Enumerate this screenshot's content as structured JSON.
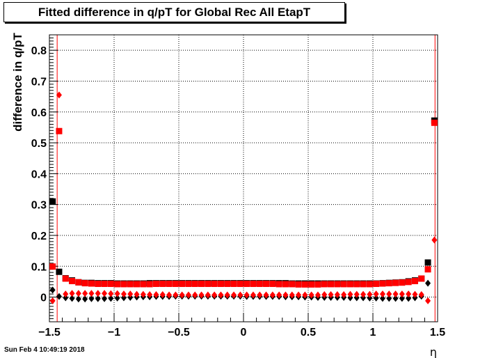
{
  "title": "Fitted difference in q/pT for Global Rec All EtapT",
  "footer_timestamp": "Sun Feb  4 10:49:19 2018",
  "chart_data": {
    "type": "scatter",
    "title": "Fitted difference in q/pT for Global Rec All EtapT",
    "xlabel": "η",
    "ylabel": "difference in q/pT",
    "xlim": [
      -1.5,
      1.5
    ],
    "ylim": [
      -0.08,
      0.85
    ],
    "xticks": [
      -1.5,
      -1,
      -0.5,
      0,
      0.5,
      1,
      1.5
    ],
    "xtick_labels": [
      "−1.5",
      "−1",
      "−0.5",
      "0",
      "0.5",
      "1",
      "1.5"
    ],
    "yticks": [
      0,
      0.1,
      0.2,
      0.3,
      0.4,
      0.5,
      0.6,
      0.7,
      0.8
    ],
    "ytick_labels": [
      "0",
      "0.1",
      "0.2",
      "0.3",
      "0.4",
      "0.5",
      "0.6",
      "0.7",
      "0.8"
    ],
    "grid": true,
    "vertical_lines": [
      -1.44,
      1.48
    ],
    "series": [
      {
        "marker": "square",
        "color": "#000000",
        "x": [
          -1.475,
          -1.425,
          -1.375,
          -1.325,
          -1.275,
          -1.225,
          -1.175,
          -1.125,
          -1.075,
          -1.025,
          -0.975,
          -0.925,
          -0.875,
          -0.825,
          -0.775,
          -0.725,
          -0.675,
          -0.625,
          -0.575,
          -0.525,
          -0.475,
          -0.425,
          -0.375,
          -0.325,
          -0.275,
          -0.225,
          -0.175,
          -0.125,
          -0.075,
          -0.025,
          0.025,
          0.075,
          0.125,
          0.175,
          0.225,
          0.275,
          0.325,
          0.375,
          0.425,
          0.475,
          0.525,
          0.575,
          0.625,
          0.675,
          0.725,
          0.775,
          0.825,
          0.875,
          0.925,
          0.975,
          1.025,
          1.075,
          1.125,
          1.175,
          1.225,
          1.275,
          1.325,
          1.375,
          1.425,
          1.475
        ],
        "y": [
          0.31,
          0.082,
          0.061,
          0.054,
          0.048,
          0.046,
          0.046,
          0.045,
          0.045,
          0.045,
          0.044,
          0.044,
          0.044,
          0.044,
          0.044,
          0.045,
          0.045,
          0.045,
          0.045,
          0.045,
          0.045,
          0.045,
          0.045,
          0.045,
          0.045,
          0.045,
          0.045,
          0.045,
          0.045,
          0.045,
          0.045,
          0.045,
          0.045,
          0.045,
          0.045,
          0.045,
          0.045,
          0.044,
          0.044,
          0.044,
          0.044,
          0.044,
          0.044,
          0.044,
          0.044,
          0.044,
          0.044,
          0.044,
          0.044,
          0.044,
          0.044,
          0.045,
          0.046,
          0.047,
          0.048,
          0.051,
          0.054,
          0.06,
          0.112,
          0.572
        ]
      },
      {
        "marker": "diamond",
        "color": "#000000",
        "x": [
          -1.475,
          -1.425,
          -1.375,
          -1.325,
          -1.275,
          -1.225,
          -1.175,
          -1.125,
          -1.075,
          -1.025,
          -0.975,
          -0.925,
          -0.875,
          -0.825,
          -0.775,
          -0.725,
          -0.675,
          -0.625,
          -0.575,
          -0.525,
          -0.475,
          -0.425,
          -0.375,
          -0.325,
          -0.275,
          -0.225,
          -0.175,
          -0.125,
          -0.075,
          -0.025,
          0.025,
          0.075,
          0.125,
          0.175,
          0.225,
          0.275,
          0.325,
          0.375,
          0.425,
          0.475,
          0.525,
          0.575,
          0.625,
          0.675,
          0.725,
          0.775,
          0.825,
          0.875,
          0.925,
          0.975,
          1.025,
          1.075,
          1.125,
          1.175,
          1.225,
          1.275,
          1.325,
          1.375,
          1.425,
          1.475
        ],
        "y": [
          0.023,
          0.002,
          -0.002,
          -0.004,
          -0.006,
          -0.006,
          -0.005,
          -0.005,
          -0.005,
          -0.004,
          -0.003,
          -0.002,
          -0.001,
          0,
          0.001,
          0.001,
          0.002,
          0.002,
          0.002,
          0.003,
          0.003,
          0.003,
          0.003,
          0.003,
          0.003,
          0.003,
          0.003,
          0.003,
          0.003,
          0.003,
          0.002,
          0.002,
          0.002,
          0.002,
          0.002,
          0.002,
          0.001,
          0.001,
          0.001,
          0,
          0,
          -0.001,
          -0.001,
          -0.001,
          -0.001,
          -0.001,
          -0.002,
          -0.002,
          -0.002,
          -0.003,
          -0.003,
          -0.004,
          -0.004,
          -0.004,
          -0.004,
          -0.004,
          -0.002,
          0.003,
          0.045,
          0.57
        ]
      },
      {
        "marker": "square",
        "color": "#ff0000",
        "x": [
          -1.475,
          -1.425,
          -1.375,
          -1.325,
          -1.275,
          -1.225,
          -1.175,
          -1.125,
          -1.075,
          -1.025,
          -0.975,
          -0.925,
          -0.875,
          -0.825,
          -0.775,
          -0.725,
          -0.675,
          -0.625,
          -0.575,
          -0.525,
          -0.475,
          -0.425,
          -0.375,
          -0.325,
          -0.275,
          -0.225,
          -0.175,
          -0.125,
          -0.075,
          -0.025,
          0.025,
          0.075,
          0.125,
          0.175,
          0.225,
          0.275,
          0.325,
          0.375,
          0.425,
          0.475,
          0.525,
          0.575,
          0.625,
          0.675,
          0.725,
          0.775,
          0.825,
          0.875,
          0.925,
          0.975,
          1.025,
          1.075,
          1.125,
          1.175,
          1.225,
          1.275,
          1.325,
          1.375,
          1.425,
          1.475
        ],
        "y": [
          0.099,
          0.538,
          0.06,
          0.052,
          0.048,
          0.045,
          0.044,
          0.043,
          0.043,
          0.043,
          0.042,
          0.042,
          0.042,
          0.042,
          0.042,
          0.042,
          0.043,
          0.043,
          0.043,
          0.043,
          0.043,
          0.043,
          0.043,
          0.043,
          0.043,
          0.043,
          0.043,
          0.043,
          0.043,
          0.043,
          0.043,
          0.043,
          0.043,
          0.043,
          0.043,
          0.042,
          0.042,
          0.042,
          0.041,
          0.041,
          0.041,
          0.041,
          0.042,
          0.042,
          0.042,
          0.042,
          0.042,
          0.042,
          0.042,
          0.042,
          0.043,
          0.044,
          0.045,
          0.046,
          0.047,
          0.049,
          0.052,
          0.06,
          0.09,
          0.565
        ]
      },
      {
        "marker": "diamond",
        "color": "#ff0000",
        "x": [
          -1.475,
          -1.425,
          -1.375,
          -1.325,
          -1.275,
          -1.225,
          -1.175,
          -1.125,
          -1.075,
          -1.025,
          -0.975,
          -0.925,
          -0.875,
          -0.825,
          -0.775,
          -0.725,
          -0.675,
          -0.625,
          -0.575,
          -0.525,
          -0.475,
          -0.425,
          -0.375,
          -0.325,
          -0.275,
          -0.225,
          -0.175,
          -0.125,
          -0.075,
          -0.025,
          0.025,
          0.075,
          0.125,
          0.175,
          0.225,
          0.275,
          0.325,
          0.375,
          0.425,
          0.475,
          0.525,
          0.575,
          0.625,
          0.675,
          0.725,
          0.775,
          0.825,
          0.875,
          0.925,
          0.975,
          1.025,
          1.075,
          1.125,
          1.175,
          1.225,
          1.275,
          1.325,
          1.375,
          1.425,
          1.475
        ],
        "y": [
          -0.012,
          0.655,
          0.01,
          0.012,
          0.012,
          0.012,
          0.012,
          0.012,
          0.012,
          0.011,
          0.011,
          0.01,
          0.01,
          0.009,
          0.009,
          0.008,
          0.008,
          0.008,
          0.007,
          0.007,
          0.007,
          0.007,
          0.007,
          0.007,
          0.007,
          0.007,
          0.007,
          0.007,
          0.007,
          0.007,
          0.007,
          0.007,
          0.007,
          0.007,
          0.007,
          0.007,
          0.007,
          0.007,
          0.007,
          0.007,
          0.007,
          0.007,
          0.008,
          0.008,
          0.008,
          0.008,
          0.009,
          0.009,
          0.009,
          0.009,
          0.01,
          0.01,
          0.01,
          0.01,
          0.01,
          0.01,
          0.009,
          0.008,
          -0.012,
          0.185
        ]
      }
    ]
  }
}
